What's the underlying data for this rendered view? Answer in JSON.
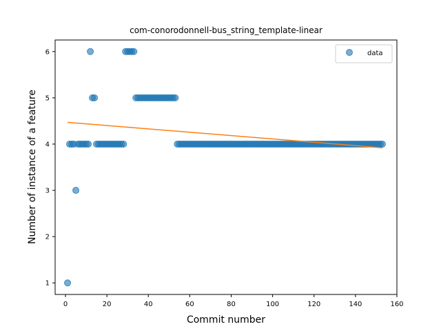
{
  "chart_data": {
    "type": "scatter",
    "title": "com-conorodonnell-bus_string_template-linear",
    "xlabel": "Commit number",
    "ylabel": "Number of instance of a feature",
    "xlim": [
      -5,
      160
    ],
    "ylim": [
      0.75,
      6.25
    ],
    "xticks": [
      0,
      20,
      40,
      60,
      80,
      100,
      120,
      140,
      160
    ],
    "yticks": [
      1,
      2,
      3,
      4,
      5,
      6
    ],
    "grid": false,
    "legend": {
      "placement": "top-right",
      "entries": [
        "data"
      ]
    },
    "colors": {
      "data": "#1f77b4",
      "trend": "#ff7f0e"
    },
    "series": [
      {
        "name": "data",
        "kind": "points",
        "segments": [
          {
            "x_start": 1,
            "x_end": 1,
            "y": 1
          },
          {
            "x_start": 2,
            "x_end": 4,
            "y": 4
          },
          {
            "x_start": 5,
            "x_end": 5,
            "y": 3
          },
          {
            "x_start": 6,
            "x_end": 11,
            "y": 4
          },
          {
            "x_start": 12,
            "x_end": 12,
            "y": 6
          },
          {
            "x_start": 13,
            "x_end": 14,
            "y": 5
          },
          {
            "x_start": 15,
            "x_end": 28,
            "y": 4
          },
          {
            "x_start": 29,
            "x_end": 33,
            "y": 6
          },
          {
            "x_start": 34,
            "x_end": 53,
            "y": 5
          },
          {
            "x_start": 54,
            "x_end": 153,
            "y": 4
          }
        ]
      },
      {
        "name": "",
        "kind": "line",
        "x": [
          1,
          153
        ],
        "y": [
          4.47,
          3.92
        ]
      }
    ]
  }
}
